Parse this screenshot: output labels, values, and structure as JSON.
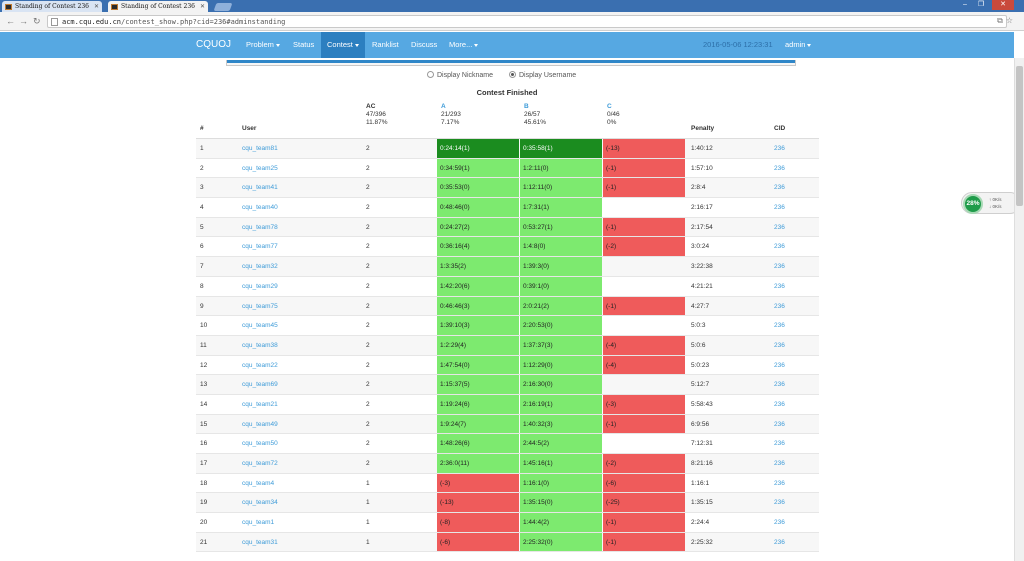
{
  "browser": {
    "tabs": [
      {
        "title": "Standing of Contest 236"
      },
      {
        "title": "Standing of Contest 236"
      }
    ],
    "url_host": "acm.cqu.edu.cn",
    "url_path": "/contest_show.php?cid=236#adminstanding"
  },
  "navbar": {
    "brand": "CQUOJ",
    "items": [
      {
        "label": "Problem",
        "dropdown": true
      },
      {
        "label": "Status",
        "dropdown": false
      },
      {
        "label": "Contest",
        "dropdown": true,
        "active": true
      },
      {
        "label": "Ranklist",
        "dropdown": false
      },
      {
        "label": "Discuss",
        "dropdown": false
      },
      {
        "label": "More...",
        "dropdown": true
      }
    ],
    "datetime": "2016-05-06 12:23:31",
    "admin": "admin"
  },
  "display_options": {
    "nickname": "Display Nickname",
    "username": "Display Username",
    "selected": "username"
  },
  "contest_status": "Contest Finished",
  "table": {
    "headers": {
      "rank": "#",
      "user": "User",
      "ac": "AC",
      "penalty": "Penalty",
      "cid": "CID"
    },
    "ac_stats": {
      "count": "47/396",
      "pct": "11.87%"
    },
    "problems": [
      {
        "label": "A",
        "count": "21/293",
        "pct": "7.17%"
      },
      {
        "label": "B",
        "count": "26/57",
        "pct": "45.61%"
      },
      {
        "label": "C",
        "count": "0/46",
        "pct": "0%"
      }
    ],
    "rows": [
      {
        "rank": "1",
        "user": "cqu_team81",
        "ac": "2",
        "a": "0:24:14(1)",
        "as": "fb",
        "b": "0:35:58(1)",
        "bs": "fb",
        "c": "(-13)",
        "cs": "wa",
        "penalty": "1:40:12",
        "cid": "236"
      },
      {
        "rank": "2",
        "user": "cqu_team25",
        "ac": "2",
        "a": "0:34:59(1)",
        "as": "ac",
        "b": "1:2:11(0)",
        "bs": "ac",
        "c": "(-1)",
        "cs": "wa",
        "penalty": "1:57:10",
        "cid": "236"
      },
      {
        "rank": "3",
        "user": "cqu_team41",
        "ac": "2",
        "a": "0:35:53(0)",
        "as": "ac",
        "b": "1:12:11(0)",
        "bs": "ac",
        "c": "(-1)",
        "cs": "wa",
        "penalty": "2:8:4",
        "cid": "236"
      },
      {
        "rank": "4",
        "user": "cqu_team40",
        "ac": "2",
        "a": "0:48:46(0)",
        "as": "ac",
        "b": "1:7:31(1)",
        "bs": "ac",
        "c": "",
        "cs": "",
        "penalty": "2:16:17",
        "cid": "236"
      },
      {
        "rank": "5",
        "user": "cqu_team78",
        "ac": "2",
        "a": "0:24:27(2)",
        "as": "ac",
        "b": "0:53:27(1)",
        "bs": "ac",
        "c": "(-1)",
        "cs": "wa",
        "penalty": "2:17:54",
        "cid": "236"
      },
      {
        "rank": "6",
        "user": "cqu_team77",
        "ac": "2",
        "a": "0:36:16(4)",
        "as": "ac",
        "b": "1:4:8(0)",
        "bs": "ac",
        "c": "(-2)",
        "cs": "wa",
        "penalty": "3:0:24",
        "cid": "236"
      },
      {
        "rank": "7",
        "user": "cqu_team32",
        "ac": "2",
        "a": "1:3:35(2)",
        "as": "ac",
        "b": "1:39:3(0)",
        "bs": "ac",
        "c": "",
        "cs": "",
        "penalty": "3:22:38",
        "cid": "236"
      },
      {
        "rank": "8",
        "user": "cqu_team29",
        "ac": "2",
        "a": "1:42:20(6)",
        "as": "ac",
        "b": "0:39:1(0)",
        "bs": "ac",
        "c": "",
        "cs": "",
        "penalty": "4:21:21",
        "cid": "236"
      },
      {
        "rank": "9",
        "user": "cqu_team75",
        "ac": "2",
        "a": "0:46:46(3)",
        "as": "ac",
        "b": "2:0:21(2)",
        "bs": "ac",
        "c": "(-1)",
        "cs": "wa",
        "penalty": "4:27:7",
        "cid": "236"
      },
      {
        "rank": "10",
        "user": "cqu_team45",
        "ac": "2",
        "a": "1:39:10(3)",
        "as": "ac",
        "b": "2:20:53(0)",
        "bs": "ac",
        "c": "",
        "cs": "",
        "penalty": "5:0:3",
        "cid": "236"
      },
      {
        "rank": "11",
        "user": "cqu_team38",
        "ac": "2",
        "a": "1:2:29(4)",
        "as": "ac",
        "b": "1:37:37(3)",
        "bs": "ac",
        "c": "(-4)",
        "cs": "wa",
        "penalty": "5:0:6",
        "cid": "236"
      },
      {
        "rank": "12",
        "user": "cqu_team22",
        "ac": "2",
        "a": "1:47:54(0)",
        "as": "ac",
        "b": "1:12:29(0)",
        "bs": "ac",
        "c": "(-4)",
        "cs": "wa",
        "penalty": "5:0:23",
        "cid": "236"
      },
      {
        "rank": "13",
        "user": "cqu_team69",
        "ac": "2",
        "a": "1:15:37(5)",
        "as": "ac",
        "b": "2:16:30(0)",
        "bs": "ac",
        "c": "",
        "cs": "",
        "penalty": "5:12:7",
        "cid": "236"
      },
      {
        "rank": "14",
        "user": "cqu_team21",
        "ac": "2",
        "a": "1:19:24(6)",
        "as": "ac",
        "b": "2:16:19(1)",
        "bs": "ac",
        "c": "(-3)",
        "cs": "wa",
        "penalty": "5:58:43",
        "cid": "236"
      },
      {
        "rank": "15",
        "user": "cqu_team49",
        "ac": "2",
        "a": "1:9:24(7)",
        "as": "ac",
        "b": "1:40:32(3)",
        "bs": "ac",
        "c": "(-1)",
        "cs": "wa",
        "penalty": "6:9:56",
        "cid": "236"
      },
      {
        "rank": "16",
        "user": "cqu_team50",
        "ac": "2",
        "a": "1:48:26(6)",
        "as": "ac",
        "b": "2:44:5(2)",
        "bs": "ac",
        "c": "",
        "cs": "",
        "penalty": "7:12:31",
        "cid": "236"
      },
      {
        "rank": "17",
        "user": "cqu_team72",
        "ac": "2",
        "a": "2:36:0(11)",
        "as": "ac",
        "b": "1:45:16(1)",
        "bs": "ac",
        "c": "(-2)",
        "cs": "wa",
        "penalty": "8:21:16",
        "cid": "236"
      },
      {
        "rank": "18",
        "user": "cqu_team4",
        "ac": "1",
        "a": "(-3)",
        "as": "wa",
        "b": "1:16:1(0)",
        "bs": "ac",
        "c": "(-6)",
        "cs": "wa",
        "penalty": "1:16:1",
        "cid": "236"
      },
      {
        "rank": "19",
        "user": "cqu_team34",
        "ac": "1",
        "a": "(-13)",
        "as": "wa",
        "b": "1:35:15(0)",
        "bs": "ac",
        "c": "(-25)",
        "cs": "wa",
        "penalty": "1:35:15",
        "cid": "236"
      },
      {
        "rank": "20",
        "user": "cqu_team1",
        "ac": "1",
        "a": "(-8)",
        "as": "wa",
        "b": "1:44:4(2)",
        "bs": "ac",
        "c": "(-1)",
        "cs": "wa",
        "penalty": "2:24:4",
        "cid": "236"
      },
      {
        "rank": "21",
        "user": "cqu_team31",
        "ac": "1",
        "a": "(-6)",
        "as": "wa",
        "b": "2:25:32(0)",
        "bs": "ac",
        "c": "(-1)",
        "cs": "wa",
        "penalty": "2:25:32",
        "cid": "236"
      }
    ]
  },
  "widget": {
    "percent": "28%",
    "up": "0K/s",
    "down": "0K/s"
  },
  "progress_fraction": 1.0
}
